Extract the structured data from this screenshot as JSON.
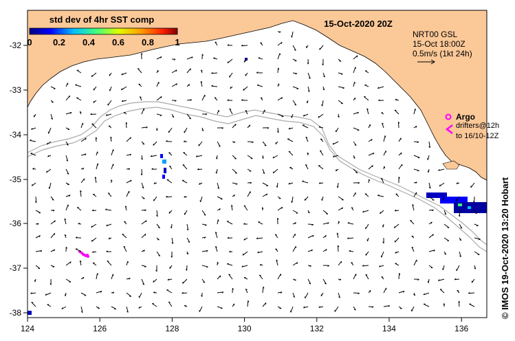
{
  "map": {
    "date_title": "15-Oct-2020 20Z",
    "colorbar": {
      "title": "std dev of 4hr SST comp",
      "ticks": [
        "0",
        "0.2",
        "0.4",
        "0.6",
        "0.8",
        "1"
      ],
      "range": [
        0,
        1
      ],
      "colors": [
        "#000080",
        "#0000ff",
        "#00c0ff",
        "#40ff80",
        "#e0ff00",
        "#ffa000",
        "#ff2000",
        "#800000"
      ]
    },
    "current_legend": {
      "line1": "NRT00 GSL",
      "line2": "15-Oct 18:00Z",
      "line3": "0.5m/s (1kt 24h)"
    },
    "argo_legend": {
      "title": "Argo",
      "line1": "drifters@12h",
      "line2": "to 16/10-12Z",
      "argo_color": "#ff00ff"
    },
    "x_ticks": [
      "124",
      "126",
      "128",
      "130",
      "132",
      "134",
      "136"
    ],
    "y_ticks": [
      "-32",
      "-33",
      "-34",
      "-35",
      "-36",
      "-37",
      "-38"
    ],
    "credit": "© IMOS 19-Oct-2020 13:20 Hobart",
    "land_color": "#fbc898",
    "shelf_line_color": "#aaaaaa"
  }
}
